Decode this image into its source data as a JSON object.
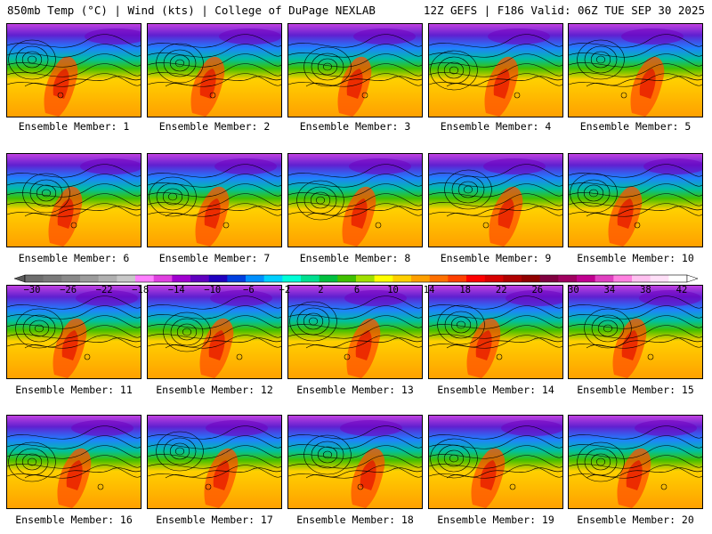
{
  "header": {
    "title": "850mb Temp (°C) | Wind (kts) | College of DuPage NEXLAB",
    "run_info": "12Z GEFS | F186 Valid: 06Z TUE SEP 30 2025"
  },
  "colorbar": {
    "tick_labels": [
      "−30",
      "−26",
      "−22",
      "−18",
      "−14",
      "−10",
      "−6",
      "−2",
      "2",
      "6",
      "10",
      "14",
      "18",
      "22",
      "26",
      "30",
      "34",
      "38",
      "42"
    ],
    "colors": [
      "#6e6e6e",
      "#7a7a7a",
      "#898989",
      "#9b9b9b",
      "#b0b0b0",
      "#c8c8c8",
      "#ff7fff",
      "#e040e0",
      "#a000d0",
      "#6000c0",
      "#2000c0",
      "#0040e0",
      "#0090ff",
      "#00d0ff",
      "#00ffd8",
      "#00e090",
      "#00c040",
      "#40c000",
      "#a0e000",
      "#ffff00",
      "#ffd000",
      "#ffa000",
      "#ff7000",
      "#ff4000",
      "#ff0000",
      "#d80000",
      "#b00000",
      "#900000",
      "#800040",
      "#a00060",
      "#c00090",
      "#e040c0",
      "#ff80e0",
      "#ffc0f0",
      "#ffe0f8",
      "#ffffff"
    ]
  },
  "panels": [
    {
      "label": "Ensemble Member: 1"
    },
    {
      "label": "Ensemble Member: 2"
    },
    {
      "label": "Ensemble Member: 3"
    },
    {
      "label": "Ensemble Member: 4"
    },
    {
      "label": "Ensemble Member: 5"
    },
    {
      "label": "Ensemble Member: 6"
    },
    {
      "label": "Ensemble Member: 7"
    },
    {
      "label": "Ensemble Member: 8"
    },
    {
      "label": "Ensemble Member: 9"
    },
    {
      "label": "Ensemble Member: 10"
    },
    {
      "label": "Ensemble Member: 11"
    },
    {
      "label": "Ensemble Member: 12"
    },
    {
      "label": "Ensemble Member: 13"
    },
    {
      "label": "Ensemble Member: 14"
    },
    {
      "label": "Ensemble Member: 15"
    },
    {
      "label": "Ensemble Member: 16"
    },
    {
      "label": "Ensemble Member: 17"
    },
    {
      "label": "Ensemble Member: 18"
    },
    {
      "label": "Ensemble Member: 19"
    },
    {
      "label": "Ensemble Member: 20"
    }
  ]
}
